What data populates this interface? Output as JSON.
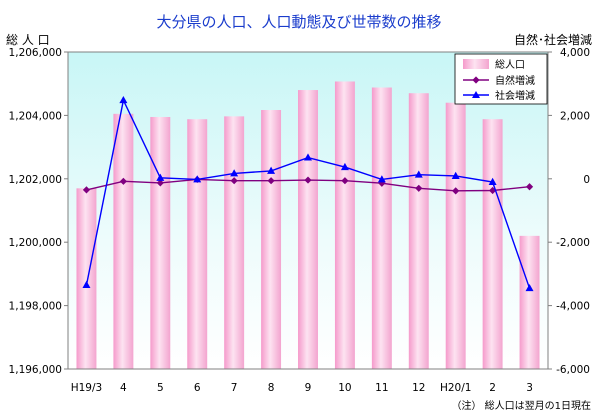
{
  "chart_data": {
    "type": "bar",
    "title": "大分県の人口、人口動態及び世帯数の推移",
    "ylabel": "総 人 口",
    "y2label": "自然･社会増減",
    "note": "（注） 総人口は翌月の1日現在",
    "categories": [
      "H19/3",
      "4",
      "5",
      "6",
      "7",
      "8",
      "9",
      "10",
      "11",
      "12",
      "H20/1",
      "2",
      "3"
    ],
    "ylim": [
      1196000,
      1206000
    ],
    "y2lim": [
      -6000,
      4000
    ],
    "yticks": [
      "1,196,000",
      "1,198,000",
      "1,200,000",
      "1,202,000",
      "1,204,000",
      "1,206,000"
    ],
    "y2ticks": [
      "-6,000",
      "-4,000",
      "-2,000",
      "0",
      "2,000",
      "4,000"
    ],
    "grid": false,
    "legend_position": "top-right",
    "series": [
      {
        "name": "総人口",
        "kind": "bar",
        "axis": "left",
        "color": "#f7b3d5",
        "values": [
          1201700,
          1204050,
          1203950,
          1203880,
          1203970,
          1204170,
          1204800,
          1205070,
          1204880,
          1204700,
          1204400,
          1203880,
          1200200
        ]
      },
      {
        "name": "自然増減",
        "kind": "line",
        "axis": "right",
        "color": "#800080",
        "marker": "diamond",
        "values": [
          -350,
          -80,
          -130,
          -20,
          -60,
          -60,
          -40,
          -60,
          -140,
          -300,
          -380,
          -370,
          -250
        ]
      },
      {
        "name": "社会増減",
        "kind": "line",
        "axis": "right",
        "color": "#0000ff",
        "marker": "triangle",
        "values": [
          -3350,
          2480,
          30,
          -20,
          170,
          250,
          670,
          370,
          -20,
          130,
          90,
          -100,
          -3450
        ]
      }
    ]
  }
}
